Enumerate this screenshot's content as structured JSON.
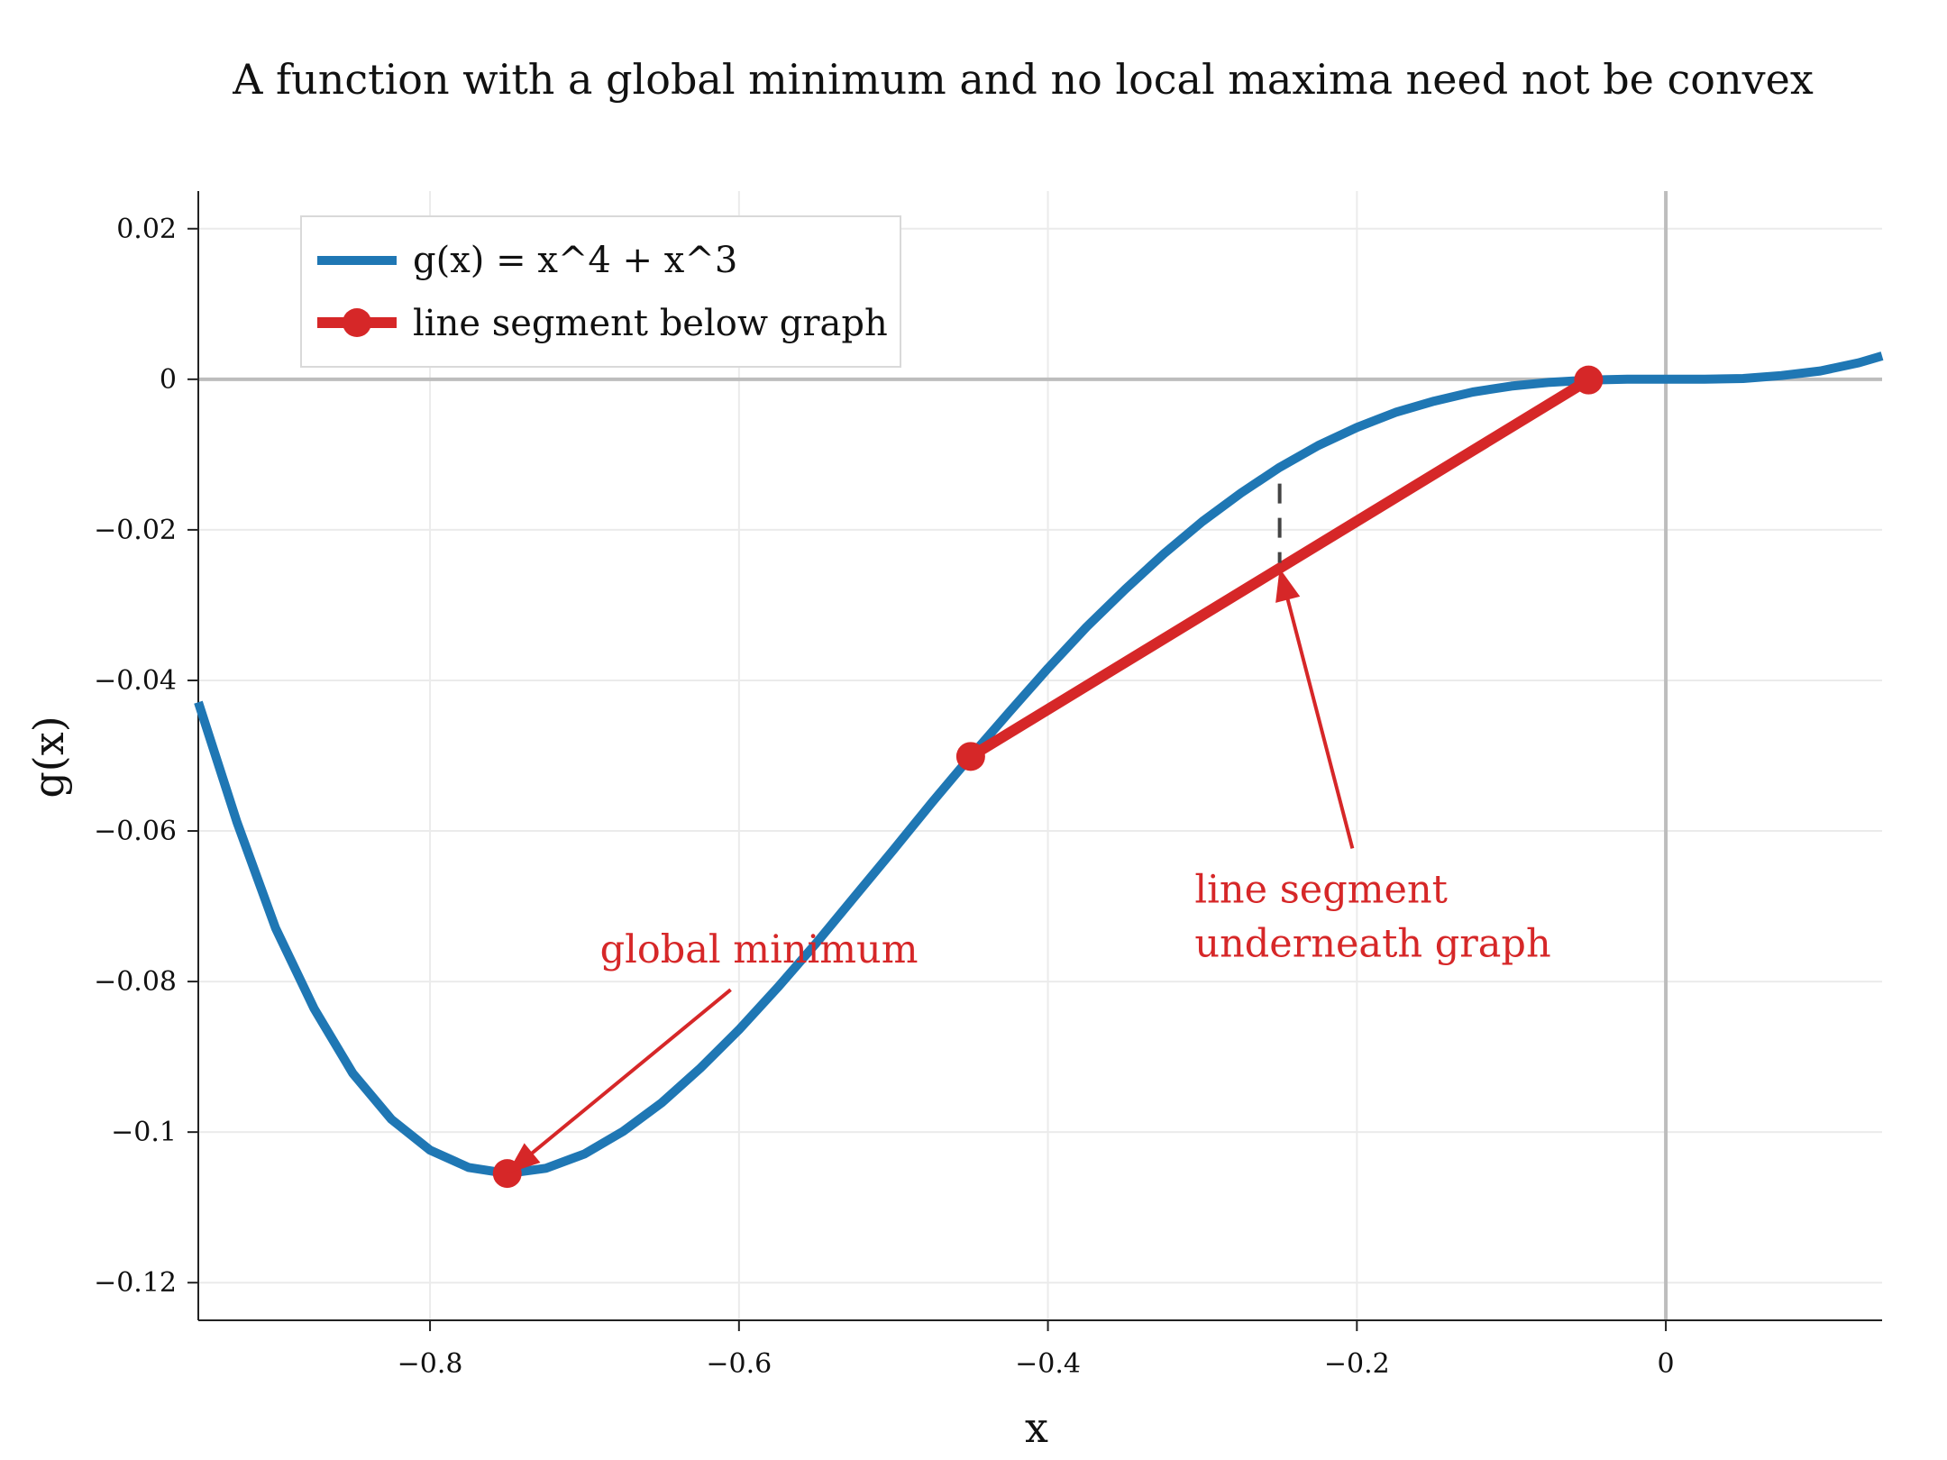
{
  "chart_data": {
    "type": "line",
    "title": "A function with a global minimum and no local maxima need not be convex",
    "xlabel": "x",
    "ylabel": "g(x)",
    "xlim": [
      -0.95,
      0.14
    ],
    "ylim": [
      -0.125,
      0.025
    ],
    "x_ticks": [
      -0.8,
      -0.6,
      -0.4,
      -0.2,
      0
    ],
    "x_tick_labels": [
      "−0.8",
      "−0.6",
      "−0.4",
      "−0.2",
      "0"
    ],
    "y_ticks": [
      0.02,
      0,
      -0.02,
      -0.04,
      -0.06,
      -0.08,
      -0.1,
      -0.12
    ],
    "y_tick_labels": [
      "0.02",
      "0",
      "−0.02",
      "−0.04",
      "−0.06",
      "−0.08",
      "−0.1",
      "−0.12"
    ],
    "grid": true,
    "legend_position": "top-left",
    "colors": {
      "function": "#1f77b4",
      "segment": "#d62728",
      "grid": "#ebebeb",
      "zero_lines": "#bdbdbd",
      "dashed": "#444444"
    },
    "series": [
      {
        "name": "g(x) = x^4 + x^3",
        "x": [
          -0.95,
          -0.925,
          -0.9,
          -0.875,
          -0.85,
          -0.825,
          -0.8,
          -0.775,
          -0.75,
          -0.725,
          -0.7,
          -0.675,
          -0.65,
          -0.625,
          -0.6,
          -0.575,
          -0.55,
          -0.525,
          -0.5,
          -0.475,
          -0.45,
          -0.425,
          -0.4,
          -0.375,
          -0.35,
          -0.325,
          -0.3,
          -0.275,
          -0.25,
          -0.225,
          -0.2,
          -0.175,
          -0.15,
          -0.125,
          -0.1,
          -0.075,
          -0.05,
          -0.025,
          0,
          0.025,
          0.05,
          0.075,
          0.1,
          0.125,
          0.14
        ],
        "y": [
          -0.0429,
          -0.0588,
          -0.0729,
          -0.0836,
          -0.0922,
          -0.0983,
          -0.1024,
          -0.1047,
          -0.1055,
          -0.1048,
          -0.1029,
          -0.0999,
          -0.0961,
          -0.0915,
          -0.0864,
          -0.0808,
          -0.0749,
          -0.0687,
          -0.0625,
          -0.0562,
          -0.0501,
          -0.0442,
          -0.0384,
          -0.0329,
          -0.0279,
          -0.0232,
          -0.0189,
          -0.0151,
          -0.0117,
          -0.0088,
          -0.0064,
          -0.0044,
          -0.0029,
          -0.0017,
          -0.0009,
          -0.0004,
          -0.0001,
          0,
          0,
          0,
          0.0001,
          0.0005,
          0.0011,
          0.0022,
          0.0031
        ]
      },
      {
        "name": "line segment below graph",
        "x": [
          -0.45,
          -0.05
        ],
        "y": [
          -0.0501,
          -0.0001
        ]
      }
    ],
    "markers": [
      {
        "x": -0.75,
        "y": -0.1055
      },
      {
        "x": -0.45,
        "y": -0.0501
      },
      {
        "x": -0.05,
        "y": -0.0001
      }
    ],
    "dashed_gap": {
      "x": -0.25,
      "y_from": -0.0117,
      "y_to": -0.0251
    },
    "annotations": [
      {
        "lines": [
          "global minimum"
        ],
        "anchor_x": -0.75,
        "anchor_y": -0.1055,
        "text_x": -0.69,
        "text_y": -0.0775
      },
      {
        "lines": [
          "line segment",
          "underneath graph"
        ],
        "anchor_x": -0.25,
        "anchor_y": -0.0251,
        "text_x": -0.305,
        "text_y": -0.0695
      }
    ]
  }
}
